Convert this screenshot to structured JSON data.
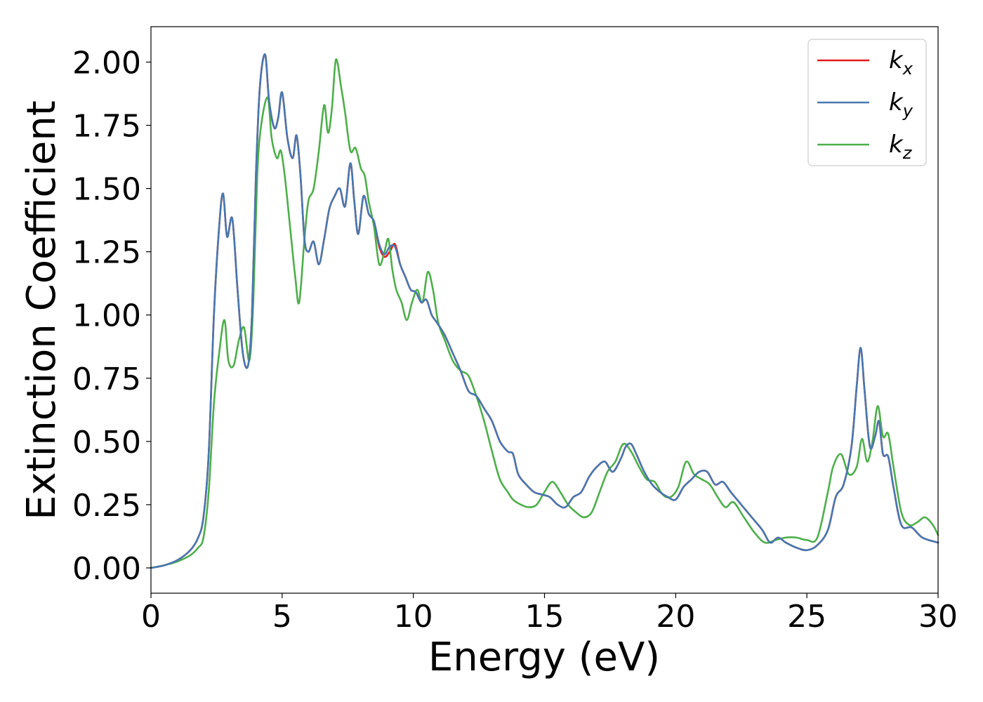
{
  "chart_data": {
    "type": "line",
    "xlabel": "Energy (eV)",
    "ylabel": "Extinction Coefficient",
    "xlim": [
      0,
      30
    ],
    "ylim": [
      -0.1,
      2.14
    ],
    "xticks": [
      0,
      5,
      10,
      15,
      20,
      25,
      30
    ],
    "xtick_labels": [
      "0",
      "5",
      "10",
      "15",
      "20",
      "25",
      "30"
    ],
    "yticks": [
      0.0,
      0.25,
      0.5,
      0.75,
      1.0,
      1.25,
      1.5,
      1.75,
      2.0
    ],
    "ytick_labels": [
      "0.00",
      "0.25",
      "0.50",
      "0.75",
      "1.00",
      "1.25",
      "1.50",
      "1.75",
      "2.00"
    ],
    "grid": false,
    "legend_position": "top-right",
    "series": [
      {
        "name": "k",
        "subscript": "x",
        "color": "#e41a1c",
        "x": [
          0,
          0.5,
          1.0,
          1.5,
          1.8,
          2.0,
          2.2,
          2.4,
          2.6,
          2.75,
          2.9,
          3.1,
          3.3,
          3.5,
          3.7,
          3.85,
          4.0,
          4.15,
          4.35,
          4.5,
          4.7,
          4.85,
          5.0,
          5.2,
          5.4,
          5.55,
          5.7,
          5.85,
          6.0,
          6.2,
          6.4,
          6.6,
          6.8,
          7.0,
          7.2,
          7.4,
          7.6,
          7.75,
          7.9,
          8.1,
          8.3,
          8.5,
          8.7,
          8.9,
          9.1,
          9.3,
          9.5,
          9.7,
          9.9,
          10.1,
          10.3,
          10.5,
          10.7,
          10.9,
          11.2,
          11.5,
          11.8,
          12.1,
          12.4,
          12.7,
          13.0,
          13.3,
          13.6,
          13.8,
          14.0,
          14.3,
          14.6,
          14.9,
          15.2,
          15.5,
          15.8,
          16.1,
          16.4,
          16.7,
          17.0,
          17.3,
          17.6,
          17.9,
          18.1,
          18.3,
          18.5,
          18.8,
          19.1,
          19.4,
          19.7,
          20.0,
          20.3,
          20.6,
          20.9,
          21.2,
          21.5,
          21.8,
          22.1,
          22.5,
          22.9,
          23.3,
          23.6,
          23.9,
          24.2,
          24.6,
          25.0,
          25.4,
          25.8,
          26.1,
          26.4,
          26.7,
          26.9,
          27.05,
          27.2,
          27.4,
          27.6,
          27.75,
          27.9,
          28.1,
          28.3,
          28.6,
          29.0,
          29.4,
          30.0
        ],
        "values": [
          0.0,
          0.01,
          0.03,
          0.07,
          0.12,
          0.2,
          0.45,
          1.0,
          1.35,
          1.48,
          1.31,
          1.38,
          1.1,
          0.85,
          0.8,
          1.0,
          1.55,
          1.9,
          2.03,
          1.85,
          1.74,
          1.78,
          1.88,
          1.7,
          1.62,
          1.71,
          1.55,
          1.3,
          1.25,
          1.29,
          1.2,
          1.3,
          1.42,
          1.47,
          1.5,
          1.43,
          1.6,
          1.45,
          1.32,
          1.47,
          1.4,
          1.37,
          1.27,
          1.23,
          1.25,
          1.28,
          1.2,
          1.15,
          1.1,
          1.09,
          1.05,
          1.06,
          1.0,
          0.97,
          0.92,
          0.85,
          0.78,
          0.7,
          0.68,
          0.63,
          0.58,
          0.5,
          0.46,
          0.45,
          0.37,
          0.33,
          0.3,
          0.29,
          0.28,
          0.25,
          0.24,
          0.28,
          0.3,
          0.36,
          0.4,
          0.42,
          0.38,
          0.43,
          0.48,
          0.49,
          0.45,
          0.38,
          0.33,
          0.3,
          0.28,
          0.27,
          0.32,
          0.35,
          0.38,
          0.38,
          0.33,
          0.34,
          0.3,
          0.25,
          0.2,
          0.15,
          0.1,
          0.12,
          0.1,
          0.08,
          0.07,
          0.09,
          0.15,
          0.28,
          0.33,
          0.48,
          0.72,
          0.87,
          0.7,
          0.48,
          0.52,
          0.58,
          0.45,
          0.44,
          0.32,
          0.17,
          0.16,
          0.12,
          0.1
        ]
      },
      {
        "name": "k",
        "subscript": "y",
        "color": "#4878b0",
        "x": [
          0,
          0.5,
          1.0,
          1.5,
          1.8,
          2.0,
          2.2,
          2.4,
          2.6,
          2.75,
          2.9,
          3.1,
          3.3,
          3.5,
          3.7,
          3.85,
          4.0,
          4.15,
          4.35,
          4.5,
          4.7,
          4.85,
          5.0,
          5.2,
          5.4,
          5.55,
          5.7,
          5.85,
          6.0,
          6.2,
          6.4,
          6.6,
          6.8,
          7.0,
          7.2,
          7.4,
          7.6,
          7.75,
          7.9,
          8.1,
          8.3,
          8.5,
          8.7,
          8.9,
          9.1,
          9.3,
          9.5,
          9.7,
          9.9,
          10.1,
          10.3,
          10.5,
          10.7,
          10.9,
          11.2,
          11.5,
          11.8,
          12.1,
          12.4,
          12.7,
          13.0,
          13.3,
          13.6,
          13.8,
          14.0,
          14.3,
          14.6,
          14.9,
          15.2,
          15.5,
          15.8,
          16.1,
          16.4,
          16.7,
          17.0,
          17.3,
          17.6,
          17.9,
          18.1,
          18.3,
          18.5,
          18.8,
          19.1,
          19.4,
          19.7,
          20.0,
          20.3,
          20.6,
          20.9,
          21.2,
          21.5,
          21.8,
          22.1,
          22.5,
          22.9,
          23.3,
          23.6,
          23.9,
          24.2,
          24.6,
          25.0,
          25.4,
          25.8,
          26.1,
          26.4,
          26.7,
          26.9,
          27.05,
          27.2,
          27.4,
          27.6,
          27.75,
          27.9,
          28.1,
          28.3,
          28.6,
          29.0,
          29.4,
          30.0
        ],
        "values": [
          0.0,
          0.01,
          0.03,
          0.07,
          0.12,
          0.2,
          0.45,
          1.0,
          1.35,
          1.48,
          1.31,
          1.38,
          1.1,
          0.85,
          0.8,
          1.0,
          1.55,
          1.9,
          2.03,
          1.85,
          1.74,
          1.78,
          1.88,
          1.7,
          1.62,
          1.71,
          1.55,
          1.3,
          1.25,
          1.29,
          1.2,
          1.3,
          1.42,
          1.47,
          1.5,
          1.43,
          1.6,
          1.45,
          1.32,
          1.47,
          1.4,
          1.37,
          1.28,
          1.24,
          1.27,
          1.27,
          1.2,
          1.15,
          1.1,
          1.09,
          1.05,
          1.06,
          1.0,
          0.97,
          0.92,
          0.85,
          0.78,
          0.7,
          0.68,
          0.63,
          0.58,
          0.5,
          0.46,
          0.45,
          0.37,
          0.33,
          0.3,
          0.29,
          0.28,
          0.25,
          0.24,
          0.28,
          0.3,
          0.36,
          0.4,
          0.42,
          0.38,
          0.43,
          0.48,
          0.49,
          0.45,
          0.38,
          0.33,
          0.3,
          0.28,
          0.27,
          0.32,
          0.35,
          0.38,
          0.38,
          0.33,
          0.34,
          0.3,
          0.25,
          0.2,
          0.15,
          0.1,
          0.12,
          0.1,
          0.08,
          0.07,
          0.09,
          0.15,
          0.28,
          0.33,
          0.48,
          0.72,
          0.87,
          0.7,
          0.48,
          0.52,
          0.58,
          0.45,
          0.44,
          0.32,
          0.17,
          0.16,
          0.12,
          0.1
        ]
      },
      {
        "name": "k",
        "subscript": "z",
        "color": "#4daf4a",
        "x": [
          0,
          0.5,
          1.0,
          1.5,
          1.8,
          2.0,
          2.2,
          2.4,
          2.6,
          2.8,
          2.95,
          3.15,
          3.35,
          3.55,
          3.75,
          3.9,
          4.05,
          4.2,
          4.45,
          4.6,
          4.8,
          4.95,
          5.1,
          5.3,
          5.5,
          5.65,
          5.85,
          6.0,
          6.2,
          6.4,
          6.6,
          6.75,
          6.9,
          7.05,
          7.25,
          7.4,
          7.6,
          7.8,
          8.0,
          8.15,
          8.3,
          8.5,
          8.7,
          8.9,
          9.05,
          9.2,
          9.35,
          9.55,
          9.75,
          9.95,
          10.15,
          10.35,
          10.55,
          10.75,
          10.95,
          11.2,
          11.5,
          11.8,
          12.1,
          12.4,
          12.7,
          13.0,
          13.3,
          13.6,
          13.8,
          14.1,
          14.4,
          14.7,
          15.0,
          15.3,
          15.6,
          15.9,
          16.2,
          16.5,
          16.8,
          17.1,
          17.4,
          17.7,
          18.0,
          18.3,
          18.6,
          18.9,
          19.2,
          19.5,
          19.8,
          20.1,
          20.4,
          20.7,
          21.0,
          21.3,
          21.6,
          21.9,
          22.2,
          22.6,
          23.0,
          23.4,
          23.8,
          24.2,
          24.6,
          25.0,
          25.4,
          25.8,
          26.0,
          26.3,
          26.6,
          26.9,
          27.1,
          27.3,
          27.5,
          27.7,
          27.9,
          28.1,
          28.3,
          28.6,
          28.9,
          29.2,
          29.5,
          29.8,
          30.0
        ],
        "values": [
          0.0,
          0.01,
          0.025,
          0.05,
          0.08,
          0.12,
          0.3,
          0.65,
          0.85,
          0.98,
          0.82,
          0.8,
          0.9,
          0.95,
          0.82,
          1.05,
          1.55,
          1.75,
          1.86,
          1.7,
          1.62,
          1.65,
          1.55,
          1.35,
          1.15,
          1.05,
          1.3,
          1.45,
          1.5,
          1.65,
          1.83,
          1.72,
          1.82,
          2.01,
          1.9,
          1.8,
          1.65,
          1.66,
          1.58,
          1.55,
          1.45,
          1.35,
          1.2,
          1.25,
          1.3,
          1.18,
          1.1,
          1.05,
          0.98,
          1.05,
          1.1,
          1.05,
          1.17,
          1.1,
          0.97,
          0.9,
          0.82,
          0.78,
          0.76,
          0.68,
          0.58,
          0.46,
          0.35,
          0.3,
          0.27,
          0.25,
          0.24,
          0.25,
          0.3,
          0.34,
          0.3,
          0.25,
          0.22,
          0.2,
          0.22,
          0.3,
          0.38,
          0.42,
          0.49,
          0.46,
          0.4,
          0.35,
          0.34,
          0.29,
          0.28,
          0.32,
          0.42,
          0.37,
          0.35,
          0.33,
          0.28,
          0.24,
          0.26,
          0.2,
          0.14,
          0.1,
          0.11,
          0.12,
          0.12,
          0.11,
          0.12,
          0.3,
          0.4,
          0.45,
          0.37,
          0.4,
          0.51,
          0.42,
          0.5,
          0.64,
          0.52,
          0.53,
          0.4,
          0.22,
          0.17,
          0.18,
          0.2,
          0.17,
          0.13
        ]
      }
    ]
  }
}
